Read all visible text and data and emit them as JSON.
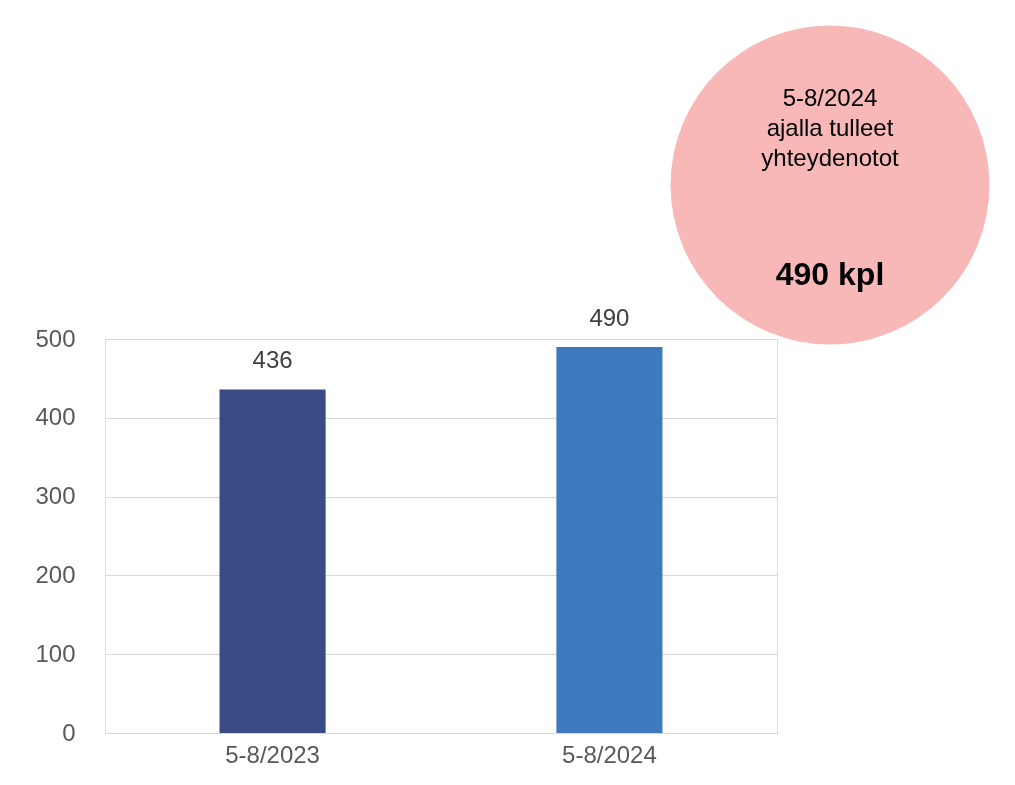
{
  "chart_data": {
    "type": "bar",
    "categories": [
      "5-8/2023",
      "5-8/2024"
    ],
    "values": [
      436,
      490
    ],
    "colors": [
      "#3a4b84",
      "#3e78bd"
    ],
    "ylim": [
      0,
      500
    ],
    "yticks": [
      0,
      100,
      200,
      300,
      400,
      500
    ],
    "grid": "y",
    "data_labels": true,
    "annotations": [
      "5-8/2024\najalla tulleet\nyhteydenotot",
      "490 kpl"
    ]
  }
}
